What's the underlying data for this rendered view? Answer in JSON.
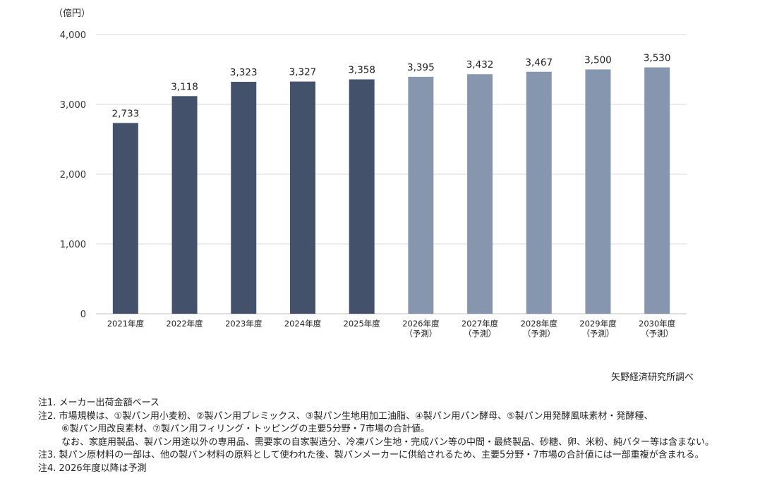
{
  "chart_data": {
    "type": "bar",
    "unit_label": "（億円）",
    "categories": [
      [
        "2021年度"
      ],
      [
        "2022年度"
      ],
      [
        "2023年度"
      ],
      [
        "2024年度"
      ],
      [
        "2025年度"
      ],
      [
        "2026年度",
        "（予測）"
      ],
      [
        "2027年度",
        "（予測）"
      ],
      [
        "2028年度",
        "（予測）"
      ],
      [
        "2029年度",
        "（予測）"
      ],
      [
        "2030年度",
        "（予測）"
      ]
    ],
    "values": [
      2733,
      3118,
      3323,
      3327,
      3358,
      3395,
      3432,
      3467,
      3500,
      3530
    ],
    "value_labels": [
      "2,733",
      "3,118",
      "3,323",
      "3,327",
      "3,358",
      "3,395",
      "3,432",
      "3,467",
      "3,500",
      "3,530"
    ],
    "forecast": [
      false,
      false,
      false,
      false,
      false,
      true,
      true,
      true,
      true,
      true
    ],
    "ylim": [
      0,
      4000
    ],
    "yticks": [
      0,
      1000,
      2000,
      3000,
      4000
    ],
    "ytick_labels": [
      "0",
      "1,000",
      "2,000",
      "3,000",
      "4,000"
    ],
    "grid": true,
    "colors": {
      "actual": "#43526a",
      "forecast": "#8696ae",
      "grid": "#d9d9d9",
      "axis": "#bfbfbf"
    }
  },
  "source": "矢野経済研究所調べ",
  "notes": [
    "注1. メーカー出荷金額ベース",
    "注2. 市場規模は、①製パン用小麦粉、②製パン用プレミックス、③製パン生地用加工油脂、④製パン用パン酵母、⑤製パン用発酵風味素材・発酵種、",
    "⑥製パン用改良素材、⑦製パン用フィリング・トッピングの主要5分野・7市場の合計値。",
    "なお、家庭用製品、製パン用途以外の専用品、需要家の自家製造分、冷凍パン生地・完成パン等の中間・最終製品、砂糖、卵、米粉、純バター等は含まない。",
    "注3. 製パン原材料の一部は、他の製パン材料の原料として使われた後、製パンメーカーに供給されるため、主要5分野・7市場の合計値には一部重複が含まれる。",
    "注4. 2026年度以降は予測"
  ]
}
